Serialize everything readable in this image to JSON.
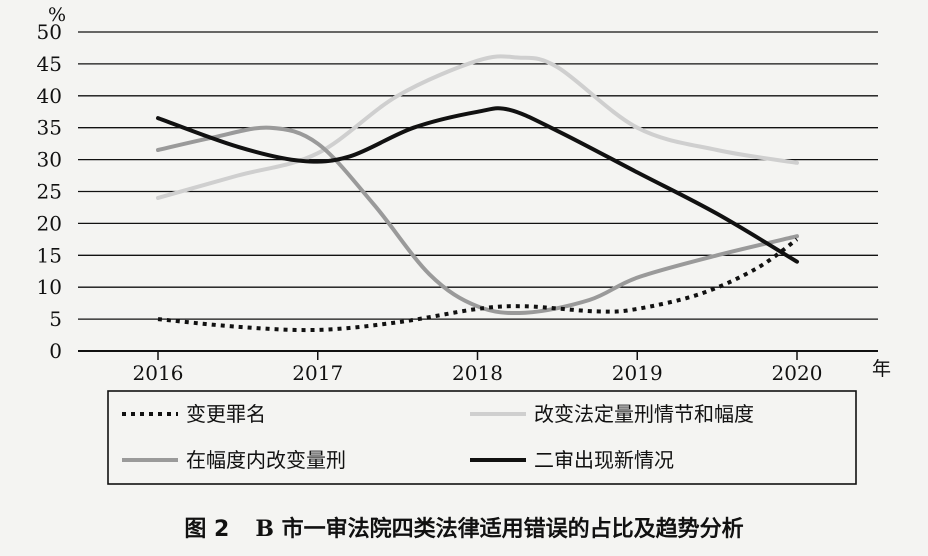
{
  "chart_data": {
    "type": "line",
    "title": "",
    "y_unit": "%",
    "x_unit": "年",
    "ylim": [
      0,
      50
    ],
    "yticks": [
      0,
      5,
      10,
      15,
      20,
      25,
      30,
      35,
      40,
      45,
      50
    ],
    "categories": [
      "2016",
      "2017",
      "2018",
      "2019",
      "2020"
    ],
    "grid": true,
    "legend_placement": "bottom",
    "series": [
      {
        "name": "变更罪名",
        "style": "dotted",
        "color": "#111111",
        "points": [
          [
            2016,
            5
          ],
          [
            2016.5,
            3.8
          ],
          [
            2017,
            3.3
          ],
          [
            2017.5,
            4.5
          ],
          [
            2018,
            6.6
          ],
          [
            2018.3,
            7
          ],
          [
            2018.75,
            6.2
          ],
          [
            2019,
            6.6
          ],
          [
            2019.4,
            9
          ],
          [
            2019.75,
            13
          ],
          [
            2020,
            17.5
          ]
        ]
      },
      {
        "name": "改变法定量刑情节和幅度",
        "style": "solid",
        "color": "#cfcfcf",
        "points": [
          [
            2016,
            24
          ],
          [
            2016.5,
            27.5
          ],
          [
            2017,
            31
          ],
          [
            2017.5,
            40
          ],
          [
            2018,
            45.5
          ],
          [
            2018.25,
            46
          ],
          [
            2018.5,
            44.5
          ],
          [
            2019,
            35
          ],
          [
            2019.5,
            31.5
          ],
          [
            2020,
            29.5
          ]
        ]
      },
      {
        "name": "在幅度内改变量刑",
        "style": "solid",
        "color": "#9a9a9a",
        "points": [
          [
            2016,
            31.5
          ],
          [
            2016.35,
            33.5
          ],
          [
            2016.7,
            35
          ],
          [
            2017,
            32.5
          ],
          [
            2017.35,
            23
          ],
          [
            2017.7,
            12
          ],
          [
            2018,
            7
          ],
          [
            2018.3,
            6
          ],
          [
            2018.7,
            8
          ],
          [
            2019,
            11.5
          ],
          [
            2019.5,
            15
          ],
          [
            2020,
            18
          ]
        ]
      },
      {
        "name": "二审出现新情况",
        "style": "solid",
        "color": "#111111",
        "points": [
          [
            2016,
            36.5
          ],
          [
            2016.5,
            32
          ],
          [
            2016.9,
            29.8
          ],
          [
            2017.2,
            30.5
          ],
          [
            2017.6,
            35
          ],
          [
            2018,
            37.5
          ],
          [
            2018.2,
            37.8
          ],
          [
            2018.5,
            34.5
          ],
          [
            2019,
            28
          ],
          [
            2019.5,
            21.5
          ],
          [
            2020,
            14
          ]
        ]
      }
    ]
  },
  "legend": {
    "dotted_label": "变更罪名",
    "light_label": "改变法定量刑情节和幅度",
    "mid_label": "在幅度内改变量刑",
    "dark_label": "二审出现新情况"
  },
  "caption": {
    "figure_no": "图 2",
    "text": "B 市一审法院四类法律适用错误的占比及趋势分析"
  }
}
